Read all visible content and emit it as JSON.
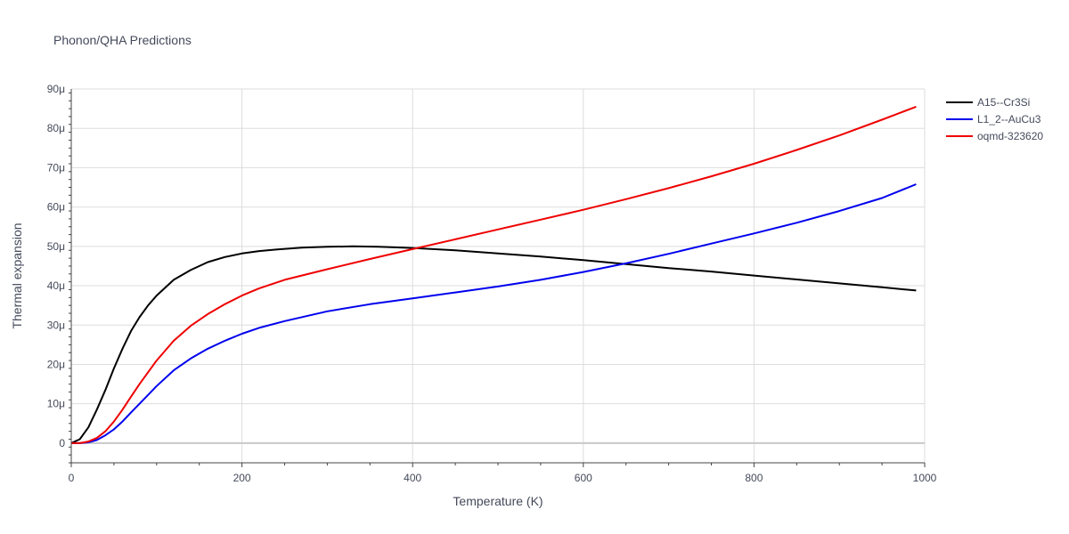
{
  "chart_data": {
    "type": "line",
    "title": "Phonon/QHA Predictions",
    "xlabel": "Temperature (K)",
    "ylabel": "Thermal expansion",
    "xlim": [
      0,
      1000
    ],
    "ylim": [
      -5,
      90
    ],
    "x_ticks": [
      {
        "value": 0,
        "label": "0"
      },
      {
        "value": 200,
        "label": "200"
      },
      {
        "value": 400,
        "label": "400"
      },
      {
        "value": 600,
        "label": "600"
      },
      {
        "value": 800,
        "label": "800"
      },
      {
        "value": 1000,
        "label": "1000"
      }
    ],
    "y_ticks": [
      {
        "value": 0,
        "label": "0"
      },
      {
        "value": 10,
        "label": "10μ"
      },
      {
        "value": 20,
        "label": "20μ"
      },
      {
        "value": 30,
        "label": "30μ"
      },
      {
        "value": 40,
        "label": "40μ"
      },
      {
        "value": 50,
        "label": "50μ"
      },
      {
        "value": 60,
        "label": "60μ"
      },
      {
        "value": 70,
        "label": "70μ"
      },
      {
        "value": 80,
        "label": "80μ"
      },
      {
        "value": 90,
        "label": "90μ"
      }
    ],
    "grid": true,
    "legend_position": "top-right",
    "series": [
      {
        "name": "A15--Cr3Si",
        "color": "#000000",
        "points": [
          [
            0,
            0
          ],
          [
            10,
            1
          ],
          [
            20,
            4
          ],
          [
            30,
            8.5
          ],
          [
            40,
            13.5
          ],
          [
            50,
            19
          ],
          [
            60,
            24
          ],
          [
            70,
            28.5
          ],
          [
            80,
            32
          ],
          [
            90,
            35
          ],
          [
            100,
            37.5
          ],
          [
            120,
            41.5
          ],
          [
            140,
            44
          ],
          [
            160,
            46
          ],
          [
            180,
            47.3
          ],
          [
            200,
            48.2
          ],
          [
            220,
            48.8
          ],
          [
            240,
            49.2
          ],
          [
            270,
            49.7
          ],
          [
            300,
            49.9
          ],
          [
            330,
            50
          ],
          [
            360,
            49.9
          ],
          [
            400,
            49.6
          ],
          [
            450,
            49
          ],
          [
            500,
            48.2
          ],
          [
            550,
            47.4
          ],
          [
            600,
            46.5
          ],
          [
            650,
            45.5
          ],
          [
            700,
            44.5
          ],
          [
            750,
            43.6
          ],
          [
            800,
            42.6
          ],
          [
            850,
            41.6
          ],
          [
            900,
            40.6
          ],
          [
            950,
            39.6
          ],
          [
            990,
            38.8
          ]
        ]
      },
      {
        "name": "L1_2--AuCu3",
        "color": "#0000ee",
        "points": [
          [
            0,
            0
          ],
          [
            10,
            0
          ],
          [
            20,
            0.2
          ],
          [
            30,
            0.8
          ],
          [
            40,
            2
          ],
          [
            50,
            3.5
          ],
          [
            60,
            5.5
          ],
          [
            70,
            7.8
          ],
          [
            80,
            10
          ],
          [
            100,
            14.5
          ],
          [
            120,
            18.5
          ],
          [
            140,
            21.5
          ],
          [
            160,
            24
          ],
          [
            180,
            26
          ],
          [
            200,
            27.8
          ],
          [
            220,
            29.3
          ],
          [
            250,
            31
          ],
          [
            300,
            33.5
          ],
          [
            350,
            35.3
          ],
          [
            400,
            36.8
          ],
          [
            450,
            38.3
          ],
          [
            500,
            39.8
          ],
          [
            550,
            41.5
          ],
          [
            600,
            43.5
          ],
          [
            650,
            45.7
          ],
          [
            700,
            48.1
          ],
          [
            750,
            50.7
          ],
          [
            800,
            53.3
          ],
          [
            850,
            56
          ],
          [
            900,
            59
          ],
          [
            950,
            62.3
          ],
          [
            990,
            65.8
          ]
        ]
      },
      {
        "name": "oqmd-323620",
        "color": "#ee0000",
        "points": [
          [
            0,
            0
          ],
          [
            10,
            0
          ],
          [
            20,
            0.4
          ],
          [
            30,
            1.3
          ],
          [
            40,
            3
          ],
          [
            50,
            5.5
          ],
          [
            60,
            8.5
          ],
          [
            70,
            11.8
          ],
          [
            80,
            15
          ],
          [
            100,
            21
          ],
          [
            120,
            26
          ],
          [
            140,
            29.8
          ],
          [
            160,
            32.8
          ],
          [
            180,
            35.3
          ],
          [
            200,
            37.5
          ],
          [
            220,
            39.3
          ],
          [
            250,
            41.5
          ],
          [
            300,
            44.2
          ],
          [
            350,
            46.8
          ],
          [
            400,
            49.3
          ],
          [
            450,
            51.8
          ],
          [
            500,
            54.3
          ],
          [
            550,
            56.8
          ],
          [
            600,
            59.3
          ],
          [
            650,
            62
          ],
          [
            700,
            64.8
          ],
          [
            750,
            67.8
          ],
          [
            800,
            71
          ],
          [
            850,
            74.5
          ],
          [
            900,
            78.2
          ],
          [
            950,
            82.2
          ],
          [
            990,
            85.5
          ]
        ]
      }
    ]
  }
}
